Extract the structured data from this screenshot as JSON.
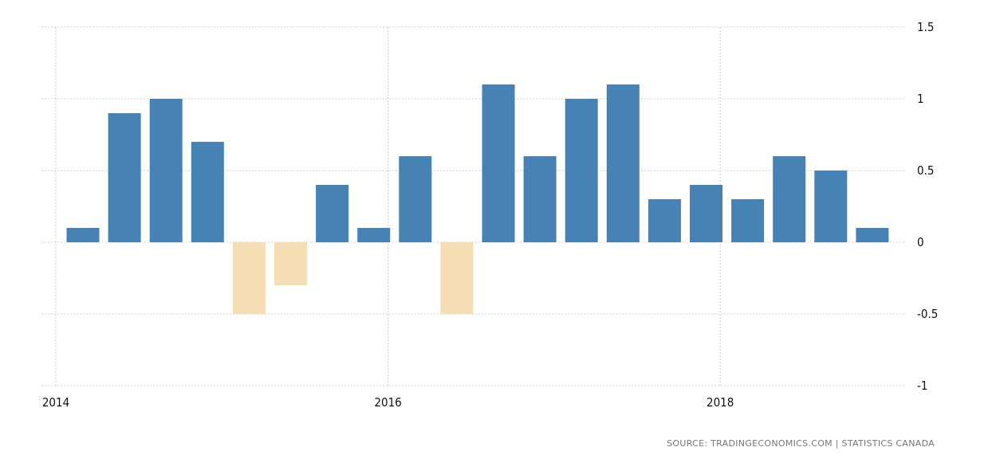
{
  "chart_data": {
    "type": "bar",
    "title": "",
    "xlabel": "",
    "ylabel": "",
    "categories": [
      "2014Q1",
      "2014Q2",
      "2014Q3",
      "2014Q4",
      "2015Q1",
      "2015Q2",
      "2015Q3",
      "2015Q4",
      "2016Q1",
      "2016Q2",
      "2016Q3",
      "2016Q4",
      "2017Q1",
      "2017Q2",
      "2017Q3",
      "2017Q4",
      "2018Q1",
      "2018Q2",
      "2018Q3",
      "2018Q4"
    ],
    "values": [
      0.1,
      0.9,
      1.0,
      0.7,
      -0.5,
      -0.3,
      0.4,
      0.1,
      0.6,
      -0.5,
      1.1,
      0.6,
      1.0,
      1.1,
      0.3,
      0.4,
      0.3,
      0.6,
      0.5,
      0.1
    ],
    "ylim": [
      -1,
      1.5
    ],
    "yticks": [
      1.5,
      1,
      0.5,
      0,
      -0.5,
      -1
    ],
    "ytick_labels": [
      "1.5",
      "1",
      "0.5",
      "0",
      "-0.5",
      "-1"
    ],
    "xticks": [
      2014,
      2016,
      2018
    ],
    "xtick_labels": [
      "2014",
      "2016",
      "2018"
    ],
    "grid": true,
    "y_axis_side": "right",
    "colors": {
      "positive": "#4682b4",
      "negative": "#f5deb3",
      "grid": "#cccccc"
    }
  },
  "source": "SOURCE:  TRADINGECONOMICS.COM  |  STATISTICS CANADA"
}
